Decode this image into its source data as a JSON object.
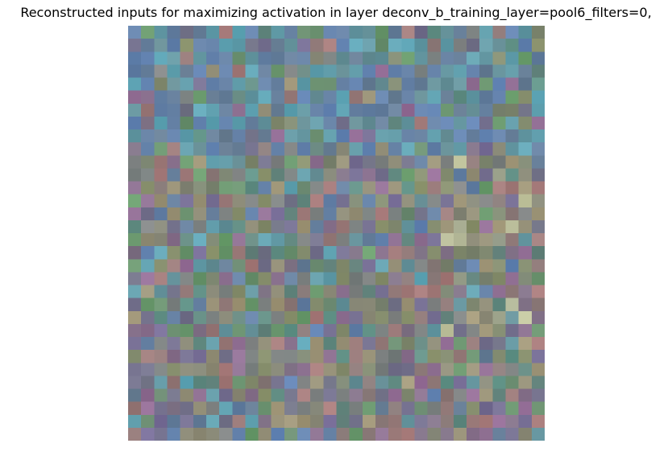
{
  "figure": {
    "title": "Reconstructed inputs for maximizing activation in layer deconv_b_training_layer=pool6_filters=0,"
  },
  "image": {
    "grid_rows": 32,
    "grid_cols": 32,
    "palette": {
      "base": "#6e7a78",
      "blue": "#5f86c4",
      "cyan": "#5cb2c8",
      "teal": "#5e9a8c",
      "green": "#6aa86a",
      "olive": "#949a6a",
      "purple": "#7a6aa0",
      "magenta": "#a06aa0",
      "rose": "#b87c7c",
      "tan": "#b0a07a",
      "gray": "#8a8a8a",
      "highlight": "#d8d8a8"
    }
  }
}
